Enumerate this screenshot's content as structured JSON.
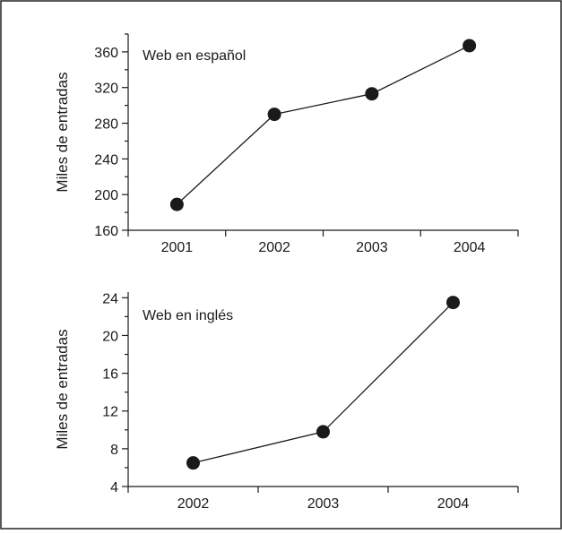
{
  "chart_data": [
    {
      "type": "line",
      "title": "",
      "annotation": "Web en español",
      "xlabel": "",
      "ylabel": "Miles de entradas",
      "categories": [
        "2001",
        "2002",
        "2003",
        "2004"
      ],
      "y_ticks": [
        160,
        200,
        240,
        280,
        320,
        360
      ],
      "ylim": [
        160,
        380
      ],
      "series": [
        {
          "values": [
            189,
            290,
            313,
            367
          ]
        }
      ],
      "grid": false,
      "legend": "none",
      "marker_color": "#1a1a1a"
    },
    {
      "type": "line",
      "title": "",
      "annotation": "Web en inglés",
      "xlabel": "",
      "ylabel": "Miles de entradas",
      "categories": [
        "2002",
        "2003",
        "2004"
      ],
      "y_ticks": [
        4,
        8,
        12,
        16,
        20,
        24
      ],
      "ylim": [
        4,
        24.6
      ],
      "series": [
        {
          "values": [
            6.5,
            9.8,
            23.5
          ]
        }
      ],
      "grid": false,
      "legend": "none",
      "marker_color": "#1a1a1a"
    }
  ]
}
